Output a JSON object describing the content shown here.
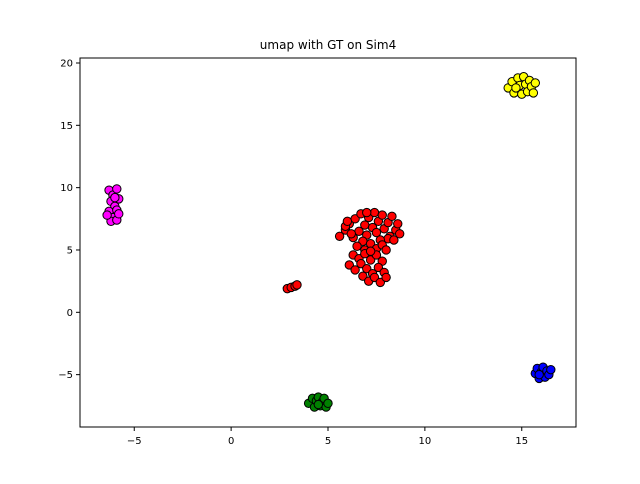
{
  "chart_data": {
    "type": "scatter",
    "title": "umap with GT on Sim4",
    "xlabel": "",
    "ylabel": "",
    "xlim": [
      -7.8,
      17.8
    ],
    "ylim": [
      -9.2,
      20.4
    ],
    "xticks": [
      -5,
      0,
      5,
      10,
      15
    ],
    "yticks": [
      -5,
      0,
      5,
      10,
      15,
      20
    ],
    "grid": false,
    "legend": "none",
    "marker_edge_color": "#000000",
    "series": [
      {
        "color": "#ff0000",
        "points": [
          [
            5.6,
            6.1
          ],
          [
            5.9,
            6.6
          ],
          [
            6.1,
            7.1
          ],
          [
            6.3,
            6.0
          ],
          [
            6.4,
            7.5
          ],
          [
            6.6,
            6.5
          ],
          [
            6.7,
            7.9
          ],
          [
            6.9,
            7.0
          ],
          [
            7.0,
            6.2
          ],
          [
            7.1,
            7.6
          ],
          [
            7.3,
            6.8
          ],
          [
            7.4,
            8.0
          ],
          [
            7.5,
            6.4
          ],
          [
            7.6,
            7.3
          ],
          [
            7.8,
            7.8
          ],
          [
            7.9,
            6.7
          ],
          [
            8.1,
            7.2
          ],
          [
            8.2,
            6.1
          ],
          [
            8.3,
            7.7
          ],
          [
            8.5,
            6.6
          ],
          [
            8.6,
            7.1
          ],
          [
            8.7,
            6.3
          ],
          [
            8.1,
            5.9
          ],
          [
            7.7,
            5.8
          ],
          [
            6.8,
            5.7
          ],
          [
            6.5,
            5.3
          ],
          [
            6.9,
            5.0
          ],
          [
            7.2,
            5.5
          ],
          [
            7.5,
            5.1
          ],
          [
            7.8,
            5.4
          ],
          [
            8.0,
            5.0
          ],
          [
            6.3,
            4.6
          ],
          [
            6.6,
            4.3
          ],
          [
            6.9,
            4.7
          ],
          [
            7.2,
            4.2
          ],
          [
            7.5,
            4.6
          ],
          [
            7.8,
            4.1
          ],
          [
            6.1,
            3.8
          ],
          [
            6.4,
            3.4
          ],
          [
            6.7,
            3.9
          ],
          [
            7.0,
            3.5
          ],
          [
            7.3,
            3.1
          ],
          [
            7.6,
            3.6
          ],
          [
            7.9,
            3.2
          ],
          [
            6.8,
            2.9
          ],
          [
            7.1,
            2.5
          ],
          [
            7.4,
            2.8
          ],
          [
            7.7,
            2.4
          ],
          [
            8.0,
            2.8
          ],
          [
            5.9,
            6.9
          ],
          [
            6.2,
            6.3
          ],
          [
            8.4,
            5.8
          ],
          [
            6.0,
            7.3
          ],
          [
            7.0,
            8.0
          ],
          [
            7.2,
            4.9
          ],
          [
            2.9,
            1.9
          ],
          [
            3.1,
            2.0
          ],
          [
            3.3,
            2.1
          ],
          [
            3.4,
            2.2
          ]
        ]
      },
      {
        "color": "#ffff00",
        "points": [
          [
            14.3,
            18.0
          ],
          [
            14.5,
            18.5
          ],
          [
            14.6,
            17.6
          ],
          [
            14.8,
            18.8
          ],
          [
            14.9,
            18.2
          ],
          [
            15.0,
            17.5
          ],
          [
            15.1,
            18.9
          ],
          [
            15.2,
            18.3
          ],
          [
            15.3,
            17.7
          ],
          [
            15.4,
            18.6
          ],
          [
            15.5,
            18.1
          ],
          [
            15.6,
            17.6
          ],
          [
            15.7,
            18.4
          ],
          [
            14.7,
            18.0
          ]
        ]
      },
      {
        "color": "#ff00ff",
        "points": [
          [
            -6.3,
            9.8
          ],
          [
            -6.1,
            9.4
          ],
          [
            -5.9,
            9.9
          ],
          [
            -6.2,
            8.9
          ],
          [
            -6.0,
            8.5
          ],
          [
            -5.8,
            9.1
          ],
          [
            -6.3,
            8.1
          ],
          [
            -6.1,
            7.6
          ],
          [
            -5.9,
            8.2
          ],
          [
            -6.2,
            7.3
          ],
          [
            -5.9,
            7.4
          ],
          [
            -6.4,
            7.8
          ],
          [
            -6.0,
            9.2
          ],
          [
            -5.8,
            7.9
          ]
        ]
      },
      {
        "color": "#0000ff",
        "points": [
          [
            15.7,
            -4.9
          ],
          [
            15.8,
            -4.5
          ],
          [
            15.9,
            -5.3
          ],
          [
            16.0,
            -4.8
          ],
          [
            16.1,
            -4.4
          ],
          [
            16.2,
            -5.2
          ],
          [
            16.3,
            -4.7
          ],
          [
            16.4,
            -5.0
          ],
          [
            16.5,
            -4.6
          ],
          [
            15.9,
            -5.0
          ]
        ]
      },
      {
        "color": "#008000",
        "points": [
          [
            4.0,
            -7.3
          ],
          [
            4.2,
            -6.9
          ],
          [
            4.3,
            -7.6
          ],
          [
            4.4,
            -7.1
          ],
          [
            4.5,
            -6.8
          ],
          [
            4.6,
            -7.5
          ],
          [
            4.7,
            -7.2
          ],
          [
            4.8,
            -6.9
          ],
          [
            4.9,
            -7.6
          ],
          [
            5.0,
            -7.3
          ],
          [
            4.5,
            -7.4
          ]
        ]
      }
    ]
  }
}
